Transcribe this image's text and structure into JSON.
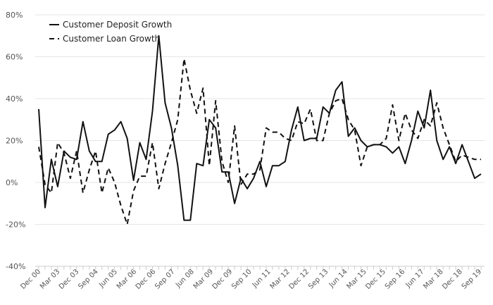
{
  "chart_data": {
    "type": "line",
    "title": "",
    "xlabel": "",
    "ylabel": "",
    "ylim": [
      -40,
      80
    ],
    "yticks": [
      -40,
      -20,
      0,
      20,
      40,
      60,
      80
    ],
    "ytick_labels": [
      "-40%",
      "-20%",
      "0%",
      "20%",
      "40%",
      "60%",
      "80%"
    ],
    "x_start": "Dec 00",
    "x_end": "Sep 19",
    "x_tick_labels": [
      "Dec 00",
      "Mar 03",
      "Dec 03",
      "Sep 04",
      "Jun 05",
      "Mar 06",
      "Dec 06",
      "Sep 07",
      "Jun 08",
      "Mar 09",
      "Dec 09",
      "Sep 10",
      "Jun 11",
      "Mar 12",
      "Dec 12",
      "Sep 13",
      "Jun 14",
      "Mar 15",
      "Dec 15",
      "Sep 16",
      "Jun 17",
      "Mar 18",
      "Dec 18",
      "Sep 19"
    ],
    "grid": true,
    "legend": "top-left",
    "series": [
      {
        "name": "Customer Deposit Growth",
        "style": "solid",
        "values": [
          35,
          -12,
          11,
          -2,
          15,
          12,
          11,
          29,
          15,
          10,
          10,
          23,
          25,
          29,
          21,
          1,
          19,
          11,
          34,
          70,
          38,
          26,
          8,
          -18,
          -18,
          9,
          8,
          30,
          26,
          5,
          5,
          -10,
          2,
          -3,
          2,
          10,
          -2,
          8,
          8,
          10,
          25,
          36,
          20,
          21,
          21,
          36,
          33,
          44,
          48,
          22,
          26,
          20,
          17,
          18,
          18,
          17,
          14,
          17,
          9,
          20,
          34,
          26,
          44,
          20,
          11,
          17,
          9,
          18,
          10,
          2,
          4
        ]
      },
      {
        "name": "Customer Loan Growth",
        "style": "dashed",
        "values": [
          17,
          -1,
          -5,
          19,
          14,
          2,
          15,
          -5,
          6,
          15,
          -5,
          7,
          0,
          -11,
          -20,
          -4,
          3,
          3,
          19,
          -3,
          9,
          19,
          30,
          59,
          44,
          33,
          45,
          8,
          39,
          10,
          0,
          27,
          -1,
          4,
          4,
          6,
          26,
          24,
          24,
          21,
          20,
          29,
          28,
          35,
          20,
          20,
          33,
          39,
          40,
          30,
          25,
          8,
          17,
          18,
          18,
          21,
          37,
          20,
          33,
          25,
          21,
          30,
          27,
          38,
          26,
          18,
          10,
          13,
          12,
          11,
          11
        ]
      }
    ]
  }
}
